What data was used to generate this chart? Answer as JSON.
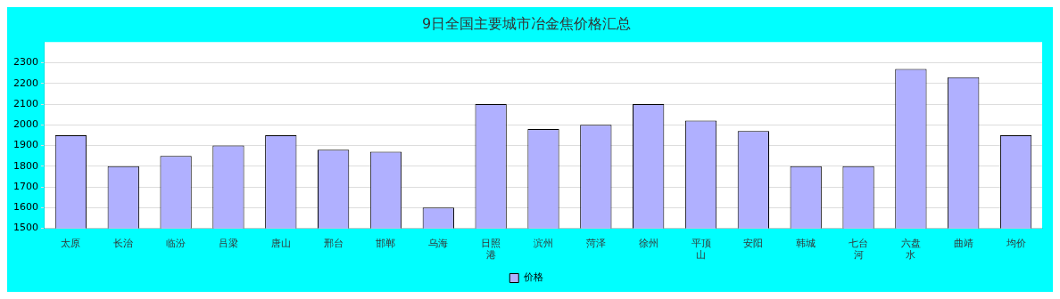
{
  "chart_data": {
    "type": "bar",
    "title": "9日全国主要城市冶金焦价格汇总",
    "categories": [
      "太原",
      "长治",
      "临汾",
      "吕梁",
      "唐山",
      "邢台",
      "邯郸",
      "乌海",
      "日照港",
      "滨州",
      "菏泽",
      "徐州",
      "平顶山",
      "安阳",
      "韩城",
      "七台河",
      "六盘水",
      "曲靖",
      "均价"
    ],
    "series": [
      {
        "name": "价格",
        "color": "#b0b0ff",
        "values": [
          1950,
          1800,
          1850,
          1900,
          1950,
          1880,
          1870,
          1600,
          2100,
          1980,
          2000,
          2100,
          2020,
          1970,
          1800,
          1800,
          2270,
          2230,
          1950
        ]
      }
    ],
    "ylim": [
      1500,
      2400
    ],
    "yticks": [
      1500,
      1600,
      1700,
      1800,
      1900,
      2000,
      2100,
      2200,
      2300
    ],
    "grid": "y",
    "legend": "bottom"
  }
}
